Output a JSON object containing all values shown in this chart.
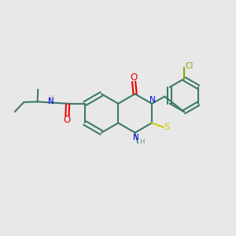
{
  "bg_color": "#e8e8e8",
  "bond_color": "#3d7a6b",
  "N_color": "#0000ee",
  "O_color": "#ee0000",
  "S_color": "#cccc00",
  "Cl_color": "#88aa00",
  "H_color": "#7a9a8a",
  "lw": 1.5,
  "figsize": [
    3.0,
    3.0
  ],
  "dpi": 100,
  "xlim": [
    0,
    10
  ],
  "ylim": [
    0,
    10
  ]
}
